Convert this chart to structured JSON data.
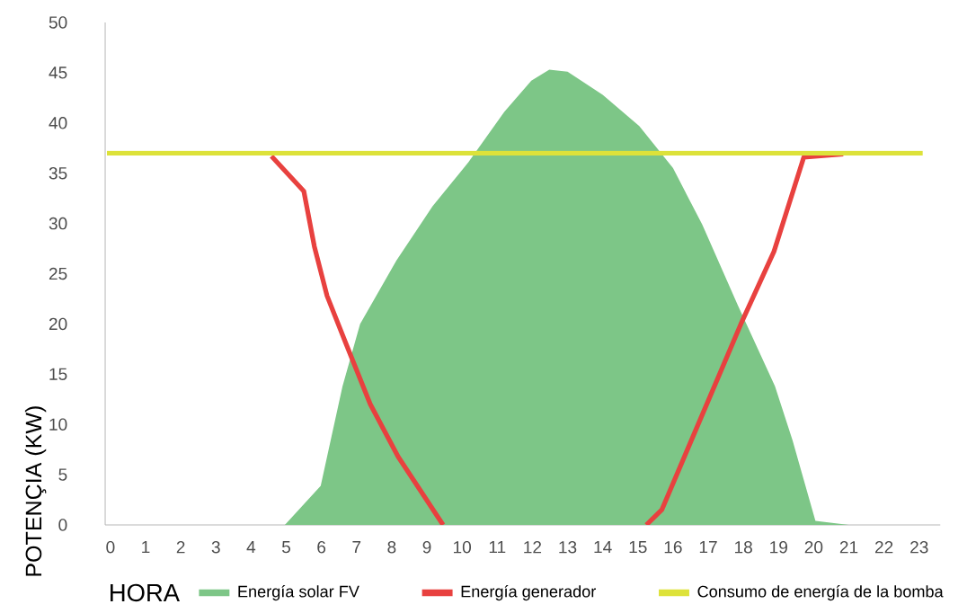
{
  "chart_data": {
    "type": "line",
    "xlabel": "HORA",
    "ylabel": "POTENÇIA (KW)",
    "xlim": [
      -0.15,
      23.6
    ],
    "ylim": [
      0,
      50
    ],
    "xticks": [
      0,
      1,
      2,
      3,
      4,
      5,
      6,
      7,
      8,
      9,
      10,
      11,
      12,
      13,
      14,
      15,
      16,
      17,
      18,
      19,
      20,
      21,
      22,
      23
    ],
    "yticks": [
      0,
      5,
      10,
      15,
      20,
      25,
      30,
      35,
      40,
      45,
      50
    ],
    "grid": false,
    "legend": "bottom",
    "line_style": "solid",
    "marker": "none",
    "series": [
      {
        "name": "Energía solar FV",
        "type": "area",
        "color": "#7dc687",
        "x": [
          4.96,
          5.98,
          6.6,
          7.1,
          8.13,
          9.16,
          10.18,
          11.2,
          11.97,
          12.48,
          13,
          14,
          15.04,
          16,
          16.83,
          17.85,
          18.9,
          19.4,
          20.05,
          21
        ],
        "values": [
          0,
          3.9,
          13.8,
          20,
          26.3,
          31.7,
          36.1,
          41.1,
          44.2,
          45.3,
          45.1,
          42.8,
          39.7,
          35.5,
          29.9,
          21.8,
          13.8,
          8.4,
          0.4,
          0
        ]
      },
      {
        "name": "Energía generador",
        "color": "#e8413f",
        "x": [
          4.58,
          5.5,
          5.8,
          6.16,
          6.68,
          7.39,
          8.18,
          9.46,
          12,
          15.24,
          15.68,
          17.93,
          18.87,
          19.72,
          20.84
        ],
        "values": [
          36.7,
          33.2,
          27.7,
          22.8,
          18.2,
          12,
          6.8,
          0,
          null,
          0,
          1.5,
          20,
          27.2,
          36.6,
          36.9
        ]
      },
      {
        "name": "Consumo de energía de la bomba",
        "color": "#dde23a",
        "x": [
          -0.1,
          23.1
        ],
        "values": [
          37,
          37
        ]
      }
    ]
  }
}
